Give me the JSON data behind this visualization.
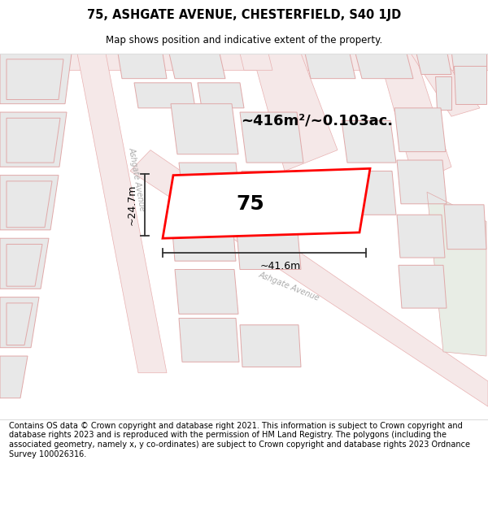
{
  "title_line1": "75, ASHGATE AVENUE, CHESTERFIELD, S40 1JD",
  "title_line2": "Map shows position and indicative extent of the property.",
  "footer_text": "Contains OS data © Crown copyright and database right 2021. This information is subject to Crown copyright and database rights 2023 and is reproduced with the permission of HM Land Registry. The polygons (including the associated geometry, namely x, y co-ordinates) are subject to Crown copyright and database rights 2023 Ordnance Survey 100026316.",
  "area_label": "~416m²/~0.103ac.",
  "width_label": "~41.6m",
  "height_label": "~24.7m",
  "property_number": "75",
  "map_bg": "#f9f6f4",
  "road_fill": "#f5e8e8",
  "road_line": "#e8b0b0",
  "bld_fill": "#e8e8e8",
  "bld_edge": "#e0a8a8",
  "prop_fill": "#ffffff",
  "prop_edge": "#ff0000",
  "prop_lw": 2.0,
  "dim_color": "#333333",
  "road_lbl_color": "#aaaaaa",
  "green_fill": "#e8ede5",
  "title_fs": 10.5,
  "sub_fs": 8.5,
  "footer_fs": 7.0,
  "area_fs": 13,
  "num_fs": 18,
  "dim_fs": 9
}
